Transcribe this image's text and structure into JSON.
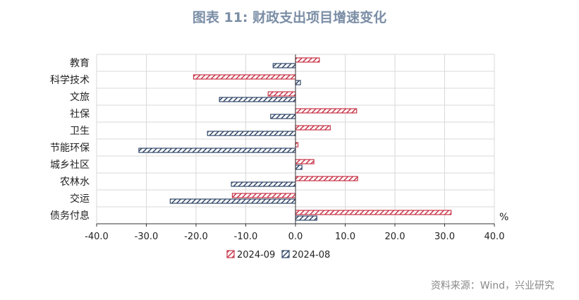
{
  "chart_data": {
    "type": "bar",
    "orientation": "horizontal",
    "title": "图表 11: 财政支出项目增速变化",
    "unit_label": "%",
    "categories": [
      "教育",
      "科学技术",
      "文旅",
      "社保",
      "卫生",
      "节能环保",
      "城乡社区",
      "农林水",
      "交运",
      "债务付息"
    ],
    "series": [
      {
        "name": "2024-09",
        "color": "#c8374a",
        "values": [
          4.8,
          -20.5,
          -5.5,
          12.3,
          7.0,
          0.5,
          3.7,
          12.5,
          -12.7,
          31.3
        ]
      },
      {
        "name": "2024-08",
        "color": "#34496a",
        "values": [
          -4.5,
          1.0,
          -15.3,
          -5.0,
          -17.7,
          -31.5,
          1.3,
          -12.9,
          -25.2,
          4.3
        ]
      }
    ],
    "xlim": [
      -40,
      40
    ],
    "xticks": [
      -40,
      -30,
      -20,
      -10,
      0,
      10,
      20,
      30,
      40
    ],
    "tick_labels": [
      "-40.0",
      "-30.0",
      "-20.0",
      "-10.0",
      "0.0",
      "10.0",
      "20.0",
      "30.0",
      "40.0"
    ],
    "grid": true,
    "legend_position": "bottom"
  },
  "source": "资料来源：Wind，兴业研究"
}
